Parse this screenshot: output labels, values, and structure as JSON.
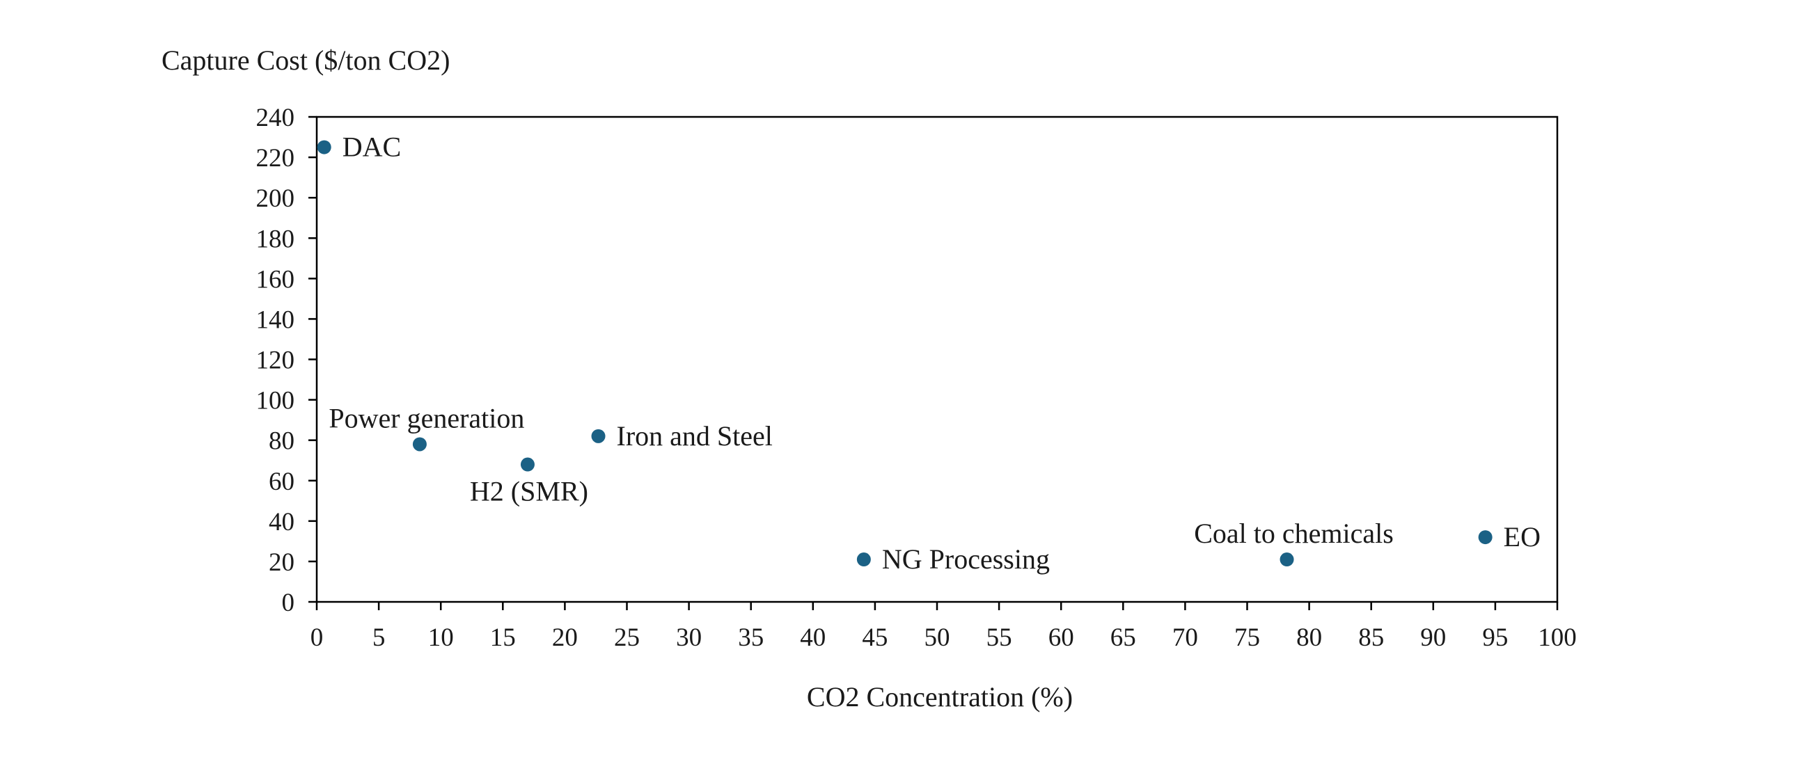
{
  "chart_data": {
    "type": "scatter",
    "title": "",
    "xlabel": "CO2 Concentration (%)",
    "ylabel": "Capture Cost ($/ton CO2)",
    "xlim": [
      0,
      100
    ],
    "ylim": [
      0,
      240
    ],
    "xticks": [
      0,
      5,
      10,
      15,
      20,
      25,
      30,
      35,
      40,
      45,
      50,
      55,
      60,
      65,
      70,
      75,
      80,
      85,
      90,
      95,
      100
    ],
    "yticks": [
      0,
      20,
      40,
      60,
      80,
      100,
      120,
      140,
      160,
      180,
      200,
      220,
      240
    ],
    "grid": false,
    "legend": "none",
    "marker_color": "#1b6185",
    "points": [
      {
        "label": "DAC",
        "x": 0.6,
        "y": 225,
        "label_pos": "right"
      },
      {
        "label": "Power generation",
        "x": 8.3,
        "y": 78,
        "label_pos": "above"
      },
      {
        "label": "H2 (SMR)",
        "x": 17,
        "y": 68,
        "label_pos": "below"
      },
      {
        "label": "Iron and Steel",
        "x": 22.7,
        "y": 82,
        "label_pos": "right"
      },
      {
        "label": "NG Processing",
        "x": 44.1,
        "y": 21,
        "label_pos": "right"
      },
      {
        "label": "Coal to chemicals",
        "x": 78.2,
        "y": 21,
        "label_pos": "above"
      },
      {
        "label": "EO",
        "x": 94.2,
        "y": 32,
        "label_pos": "right"
      }
    ]
  }
}
